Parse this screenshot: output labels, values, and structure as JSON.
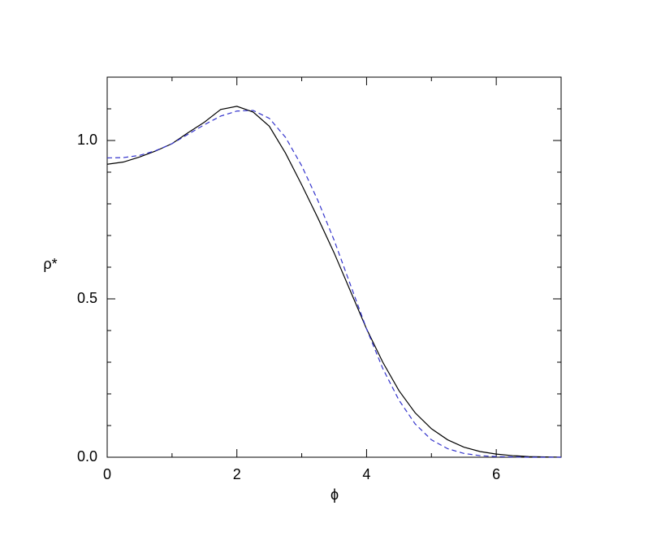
{
  "chart_data": {
    "type": "line",
    "xlabel": "ϕ",
    "ylabel": "ρ*",
    "x": [
      0,
      0.25,
      0.5,
      0.75,
      1,
      1.25,
      1.5,
      1.75,
      2,
      2.25,
      2.5,
      2.75,
      3,
      3.25,
      3.5,
      3.75,
      4,
      4.25,
      4.5,
      4.75,
      5,
      5.25,
      5.5,
      5.75,
      6,
      6.25,
      6.5,
      6.75,
      7
    ],
    "series": [
      {
        "color": "#000000",
        "style": "solid",
        "values": [
          0.925,
          0.932,
          0.948,
          0.967,
          0.99,
          1.025,
          1.058,
          1.098,
          1.108,
          1.09,
          1.045,
          0.96,
          0.86,
          0.755,
          0.645,
          0.525,
          0.405,
          0.3,
          0.21,
          0.14,
          0.09,
          0.055,
          0.032,
          0.018,
          0.01,
          0.005,
          0.002,
          0.001,
          0
        ]
      },
      {
        "color": "#3333cc",
        "style": "dashed",
        "values": [
          0.945,
          0.946,
          0.953,
          0.968,
          0.99,
          1.02,
          1.05,
          1.077,
          1.093,
          1.095,
          1.07,
          1.01,
          0.92,
          0.81,
          0.685,
          0.545,
          0.405,
          0.28,
          0.18,
          0.105,
          0.055,
          0.027,
          0.012,
          0.005,
          0.002,
          0.001,
          0,
          0,
          0
        ]
      }
    ],
    "xlim": [
      0,
      7
    ],
    "ylim": [
      0,
      1.2
    ],
    "xticks": [
      0,
      2,
      4,
      6
    ],
    "xminorticks": [
      1,
      3,
      5,
      7
    ],
    "yticks": [
      {
        "value": 0,
        "label": "0.0"
      },
      {
        "value": 0.5,
        "label": "0.5"
      },
      {
        "value": 1,
        "label": "1.0"
      }
    ],
    "yminorticks": [
      0.1,
      0.2,
      0.3,
      0.4,
      0.6,
      0.7,
      0.8,
      0.9,
      1.1
    ],
    "grid": false
  }
}
